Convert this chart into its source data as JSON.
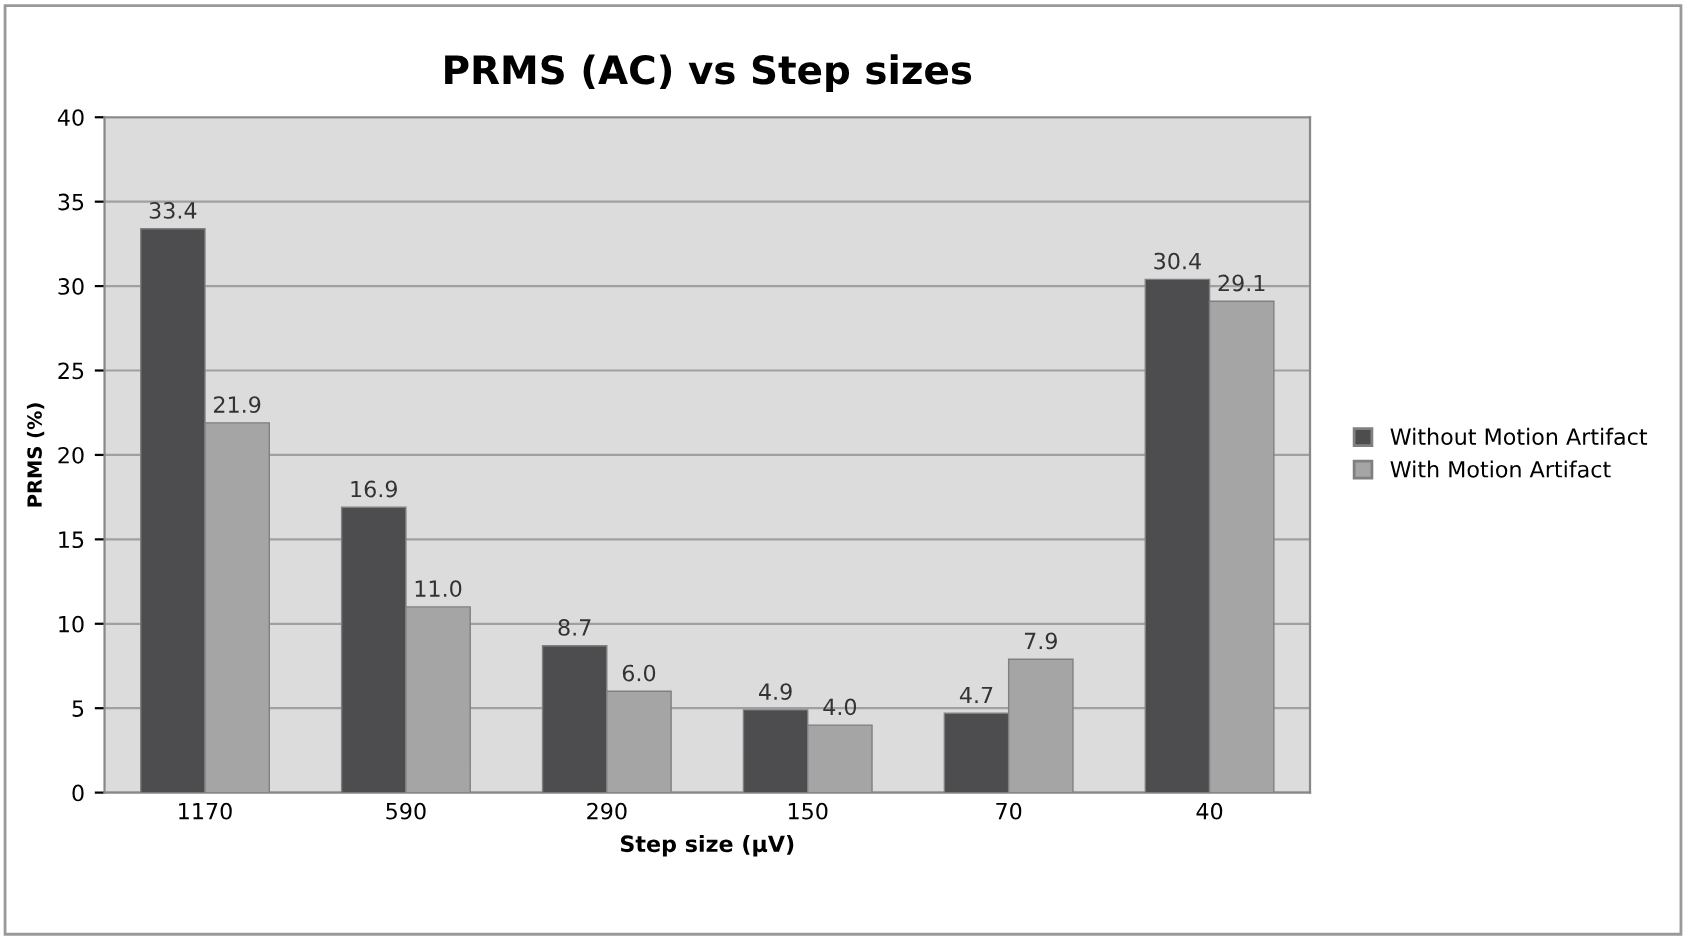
{
  "chart_data": {
    "type": "bar",
    "title": "PRMS (AC) vs Step sizes",
    "xlabel": "Step size (µV)",
    "ylabel": "PRMS (%)",
    "categories": [
      "1170",
      "590",
      "290",
      "150",
      "70",
      "40"
    ],
    "series": [
      {
        "name": "Without Motion Artifact",
        "color": "#4d4d4f",
        "values": [
          33.4,
          16.9,
          8.7,
          4.9,
          4.7,
          30.4
        ],
        "value_labels": [
          "33.4",
          "16.9",
          "8.7",
          "4.9",
          "4.7",
          "30.4"
        ]
      },
      {
        "name": "With Motion Artifact",
        "color": "#a5a5a5",
        "values": [
          21.9,
          11.0,
          6.0,
          4.0,
          7.9,
          29.1
        ],
        "value_labels": [
          "21.9",
          "11.0",
          "6.0",
          "4.0",
          "7.9",
          "29.1"
        ]
      }
    ],
    "ylim": [
      0,
      40
    ],
    "yticks": [
      0,
      5,
      10,
      15,
      20,
      25,
      30,
      35,
      40
    ],
    "grid": "y",
    "legend": "right"
  }
}
